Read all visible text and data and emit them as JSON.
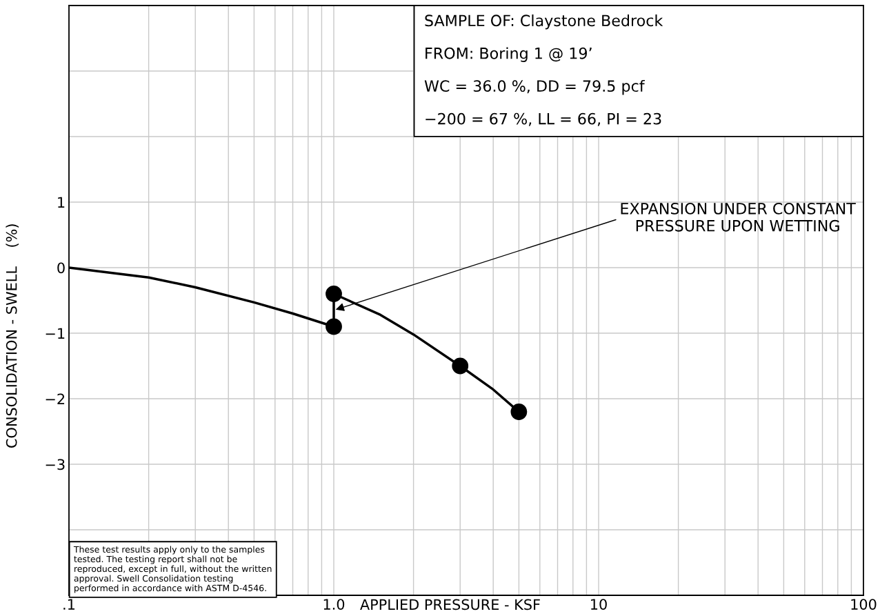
{
  "chart_data": {
    "type": "line",
    "xlabel": "APPLIED PRESSURE - KSF",
    "ylabel": "CONSOLIDATION - SWELL    (%)",
    "series": [
      {
        "color": "#000000",
        "marker": "none",
        "x": [
          0.1,
          0.2,
          0.3,
          0.5,
          0.7,
          1.0,
          1.0,
          1.5,
          2.0,
          3.0,
          4.0,
          5.0
        ],
        "values": [
          0,
          -0.15,
          -0.3,
          -0.53,
          -0.7,
          -0.9,
          -0.4,
          -0.72,
          -1.02,
          -1.5,
          -1.86,
          -2.2
        ]
      },
      {
        "type": "scatter",
        "color": "#000000",
        "marker": "circle",
        "x": [
          1.0,
          1.0,
          3.0,
          5.0
        ],
        "values": [
          -0.9,
          -0.4,
          -1.5,
          -2.2
        ]
      }
    ],
    "log": "x",
    "xlim": [
      0.1,
      100
    ],
    "xticks": [
      {
        "value": 0.1,
        "label": ".1"
      },
      {
        "value": 1,
        "label": "1.0"
      },
      10,
      100
    ],
    "ylim": [
      -5,
      4
    ],
    "yticks": [
      {
        "value": -4,
        "label": null
      },
      {
        "value": -3,
        "label": "−3"
      },
      {
        "value": -2,
        "label": "−2"
      },
      {
        "value": -1,
        "label": "−1"
      },
      0,
      1,
      {
        "value": 2,
        "label": null
      },
      {
        "value": 3,
        "label": null
      }
    ],
    "grid": true,
    "annotations": [
      "SAMPLE OF: Claystone Bedrock",
      "FROM: Boring 1 @ 19’",
      "WC = 36.0 %, DD = 79.5 pcf",
      "−200 = 67 %, LL = 66, PI = 23",
      {
        "text": "EXPANSION UNDER CONSTANT\nPRESSURE UPON WETTING",
        "x": 1.0,
        "y": -0.65
      },
      "These test results apply only to the samples tested. The testing report shall not be reproduced, except in full, without the written approval. Swell Consolidation testing performed in accordance with ASTM D-4546."
    ]
  }
}
